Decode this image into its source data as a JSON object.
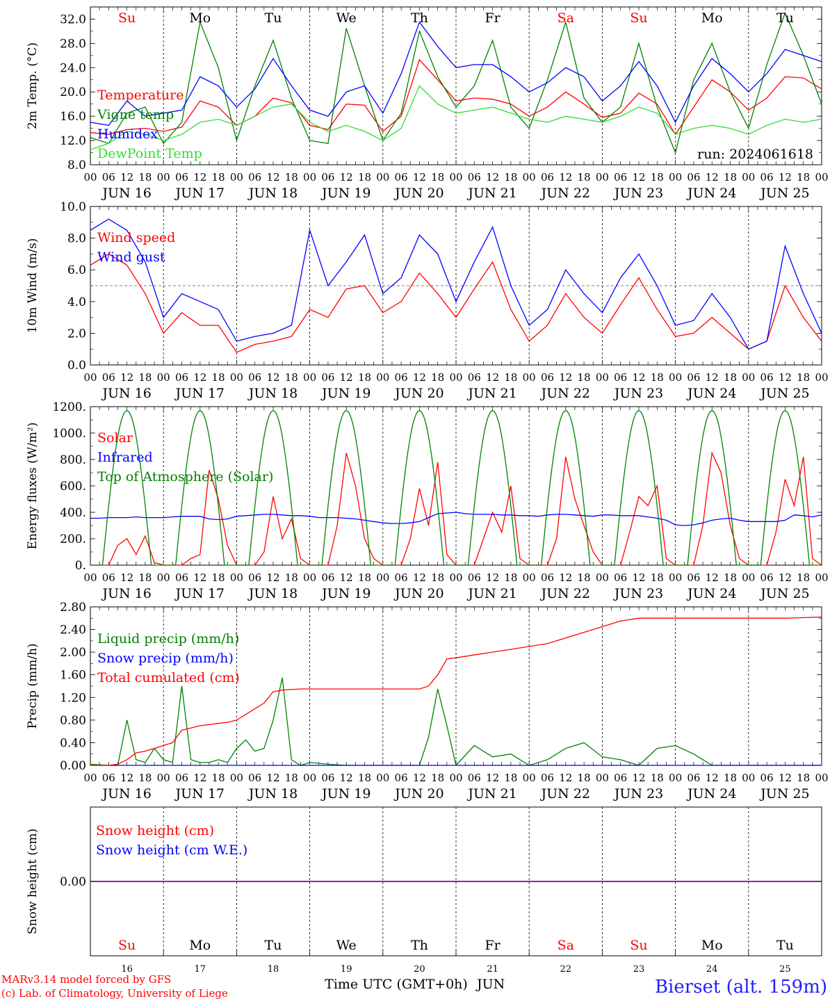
{
  "chart_data": [
    {
      "type": "line",
      "ylabel": "2m Temp. (°C)",
      "ylim": [
        8.0,
        34.0
      ],
      "yticks": [
        "8.0",
        "12.0",
        "16.0",
        "20.0",
        "24.0",
        "28.0",
        "32.0"
      ],
      "x_hours": [
        0,
        6,
        12,
        18,
        24,
        30,
        36,
        42,
        48,
        54,
        60,
        66,
        72,
        78,
        84,
        90,
        96,
        102,
        108,
        114,
        120,
        126,
        132,
        138,
        144,
        150,
        156,
        162,
        168,
        174,
        180,
        186,
        192,
        198,
        204,
        210,
        216,
        222,
        228,
        234,
        240
      ],
      "series": [
        {
          "name": "Temperature",
          "color": "#ff0000",
          "y": [
            13.3,
            13.0,
            13.8,
            14.0,
            13.5,
            14.2,
            18.5,
            17.5,
            14.5,
            16.0,
            19.0,
            18.2,
            14.5,
            13.8,
            18.0,
            17.8,
            13.5,
            16.0,
            25.3,
            22.0,
            18.5,
            19.0,
            18.8,
            18.0,
            16.0,
            17.5,
            20.0,
            18.0,
            15.8,
            16.5,
            19.8,
            18.0,
            13.0,
            17.5,
            22.0,
            20.0,
            17.0,
            19.0,
            22.5,
            22.3,
            20.5
          ]
        },
        {
          "name": "Vigne temp",
          "color": "#008000",
          "y": [
            12.5,
            11.5,
            16.5,
            17.5,
            11.5,
            15.0,
            31.5,
            24.0,
            12.0,
            21.0,
            28.5,
            19.0,
            12.0,
            11.5,
            30.5,
            21.0,
            12.0,
            16.5,
            30.0,
            22.5,
            17.5,
            21.0,
            28.5,
            17.5,
            14.0,
            22.0,
            31.5,
            19.0,
            15.0,
            17.5,
            28.0,
            17.5,
            10.0,
            22.0,
            28.0,
            20.0,
            14.0,
            24.5,
            33.0,
            26.0,
            18.0
          ]
        },
        {
          "name": "Humidex",
          "color": "#0000ff",
          "y": [
            15.0,
            14.5,
            18.5,
            16.0,
            16.5,
            17.0,
            22.5,
            21.0,
            17.5,
            20.5,
            25.5,
            21.0,
            17.0,
            16.0,
            20.0,
            21.0,
            16.5,
            23.0,
            31.5,
            27.5,
            24.0,
            24.5,
            24.5,
            22.5,
            20.0,
            21.5,
            24.0,
            22.5,
            18.5,
            21.0,
            25.0,
            21.0,
            15.0,
            21.0,
            25.5,
            23.0,
            20.0,
            23.0,
            27.0,
            26.0,
            25.0
          ]
        },
        {
          "name": "DewPoint Temp",
          "color": "#32dc32",
          "y": [
            10.5,
            11.5,
            13.5,
            13.0,
            12.0,
            13.0,
            15.0,
            15.5,
            14.5,
            16.0,
            17.5,
            18.0,
            15.0,
            13.5,
            14.5,
            13.5,
            12.0,
            14.0,
            21.0,
            18.0,
            16.5,
            17.0,
            17.5,
            16.5,
            15.5,
            15.0,
            16.0,
            15.5,
            15.0,
            16.0,
            17.5,
            16.5,
            13.0,
            14.0,
            14.5,
            14.0,
            13.0,
            14.5,
            15.5,
            15.0,
            15.5
          ]
        }
      ],
      "legend_placement": "left",
      "annotation": "run: 2024061618",
      "day_labels": [
        "Su",
        "Mo",
        "Tu",
        "We",
        "Th",
        "Fr",
        "Sa",
        "Su",
        "Mo",
        "Tu"
      ]
    },
    {
      "type": "line",
      "ylabel": "10m Wind (m/s)",
      "ylim": [
        0.0,
        10.0
      ],
      "yticks": [
        "0.0",
        "2.0",
        "4.0",
        "6.0",
        "8.0",
        "10.0"
      ],
      "reference_line": 5.0,
      "x_hours": [
        0,
        6,
        12,
        18,
        24,
        30,
        36,
        42,
        48,
        54,
        60,
        66,
        72,
        78,
        84,
        90,
        96,
        102,
        108,
        114,
        120,
        126,
        132,
        138,
        144,
        150,
        156,
        162,
        168,
        174,
        180,
        186,
        192,
        198,
        204,
        210,
        216,
        222,
        228,
        234,
        240
      ],
      "series": [
        {
          "name": "Wind speed",
          "color": "#ff0000",
          "y": [
            6.3,
            7.0,
            6.3,
            4.5,
            2.0,
            3.3,
            2.5,
            2.5,
            0.8,
            1.3,
            1.5,
            1.8,
            3.5,
            3.0,
            4.8,
            5.0,
            3.3,
            4.0,
            5.8,
            4.5,
            3.0,
            4.8,
            6.5,
            3.5,
            1.5,
            2.5,
            4.5,
            3.0,
            2.0,
            3.8,
            5.5,
            3.5,
            1.8,
            2.0,
            3.0,
            2.0,
            1.0,
            1.5,
            5.0,
            3.0,
            1.5
          ]
        },
        {
          "name": "Wind gust",
          "color": "#0000ff",
          "y": [
            8.5,
            9.2,
            8.5,
            6.5,
            3.0,
            4.5,
            4.0,
            3.5,
            1.5,
            1.8,
            2.0,
            2.5,
            8.5,
            5.0,
            6.5,
            8.2,
            4.5,
            5.5,
            8.2,
            7.0,
            4.0,
            6.5,
            8.7,
            5.0,
            2.5,
            3.5,
            6.0,
            4.5,
            3.3,
            5.5,
            7.0,
            5.0,
            2.5,
            2.8,
            4.5,
            3.0,
            1.0,
            1.5,
            7.5,
            4.5,
            2.0
          ]
        }
      ],
      "legend_placement": "left"
    },
    {
      "type": "line",
      "ylabel": "Energy fluxes (W/m²)",
      "ylim": [
        0,
        1200
      ],
      "yticks": [
        "0.",
        "200.",
        "400.",
        "600.",
        "800.",
        "1000.",
        "1200."
      ],
      "x_hours": [
        0,
        3,
        6,
        9,
        12,
        15,
        18,
        21,
        24,
        27,
        30,
        33,
        36,
        39,
        42,
        45,
        48,
        51,
        54,
        57,
        60,
        63,
        66,
        69,
        72,
        75,
        78,
        81,
        84,
        87,
        90,
        93,
        96,
        99,
        102,
        105,
        108,
        111,
        114,
        117,
        120,
        123,
        126,
        129,
        132,
        135,
        138,
        141,
        144,
        147,
        150,
        153,
        156,
        159,
        162,
        165,
        168,
        171,
        174,
        177,
        180,
        183,
        186,
        189,
        192,
        195,
        198,
        201,
        204,
        207,
        210,
        213,
        216,
        219,
        222,
        225,
        228,
        231,
        234,
        237,
        240
      ],
      "series": [
        {
          "name": "Solar",
          "color": "#ff0000",
          "y": [
            0,
            0,
            0,
            150,
            200,
            80,
            220,
            20,
            0,
            0,
            0,
            50,
            80,
            720,
            500,
            150,
            0,
            0,
            0,
            100,
            520,
            200,
            350,
            50,
            0,
            0,
            0,
            300,
            850,
            600,
            200,
            50,
            0,
            0,
            0,
            200,
            580,
            300,
            780,
            80,
            0,
            0,
            0,
            200,
            400,
            250,
            600,
            50,
            0,
            0,
            0,
            200,
            820,
            500,
            300,
            100,
            0,
            0,
            0,
            250,
            520,
            450,
            600,
            50,
            0,
            0,
            0,
            300,
            850,
            700,
            300,
            50,
            0,
            0,
            0,
            250,
            650,
            450,
            820,
            50,
            0
          ]
        },
        {
          "name": "Infrared",
          "color": "#0000ff",
          "y": [
            355,
            355,
            360,
            360,
            360,
            365,
            360,
            360,
            360,
            365,
            370,
            370,
            370,
            350,
            345,
            350,
            370,
            375,
            380,
            385,
            385,
            380,
            375,
            375,
            370,
            360,
            360,
            360,
            355,
            350,
            340,
            330,
            320,
            315,
            315,
            320,
            330,
            360,
            390,
            395,
            400,
            390,
            385,
            385,
            385,
            380,
            380,
            375,
            375,
            370,
            380,
            385,
            385,
            380,
            375,
            370,
            380,
            380,
            375,
            375,
            375,
            365,
            355,
            340,
            305,
            300,
            305,
            320,
            340,
            350,
            355,
            340,
            330,
            330,
            330,
            330,
            340,
            380,
            375,
            365,
            380
          ]
        },
        {
          "name": "Top of Atmosphere (Solar)",
          "color": "#008000",
          "shape": "diurnal",
          "peak": 1170,
          "rise_hour": 4,
          "set_hour": 20
        }
      ],
      "legend_placement": "left"
    },
    {
      "type": "line",
      "ylabel": "Precip (mm/h)",
      "ylim": [
        0.0,
        2.8
      ],
      "yticks": [
        "0.00",
        "0.40",
        "0.80",
        "1.20",
        "1.60",
        "2.00",
        "2.40",
        "2.80"
      ],
      "x_hours": [
        0,
        6,
        9,
        12,
        15,
        18,
        21,
        24,
        27,
        30,
        33,
        36,
        39,
        42,
        45,
        48,
        51,
        54,
        57,
        60,
        63,
        66,
        69,
        72,
        78,
        84,
        90,
        96,
        102,
        108,
        111,
        114,
        117,
        120,
        126,
        132,
        138,
        144,
        150,
        156,
        162,
        168,
        174,
        180,
        186,
        192,
        198,
        204,
        210,
        216,
        222,
        228,
        234,
        240
      ],
      "series": [
        {
          "name": "Liquid precip (mm/h)",
          "color": "#008000",
          "y": [
            0.02,
            0.0,
            0.0,
            0.8,
            0.1,
            0.05,
            0.3,
            0.1,
            0.05,
            1.4,
            0.1,
            0.05,
            0.05,
            0.1,
            0.05,
            0.3,
            0.45,
            0.25,
            0.3,
            0.8,
            1.55,
            0.1,
            0.0,
            0.05,
            0.02,
            0.0,
            0.0,
            0.0,
            0.0,
            0.0,
            0.5,
            1.35,
            0.7,
            0.0,
            0.35,
            0.15,
            0.2,
            0.0,
            0.1,
            0.3,
            0.4,
            0.15,
            0.1,
            0.0,
            0.3,
            0.35,
            0.2,
            0.0,
            0.0,
            0.0,
            0.0,
            0.0,
            0.0,
            0.0
          ]
        },
        {
          "name": "Snow precip (mm/h)",
          "color": "#0000ff",
          "y": [
            0,
            0,
            0,
            0,
            0,
            0,
            0,
            0,
            0,
            0,
            0,
            0,
            0,
            0,
            0,
            0,
            0,
            0,
            0,
            0,
            0,
            0,
            0,
            0,
            0,
            0,
            0,
            0,
            0,
            0,
            0,
            0,
            0,
            0,
            0,
            0,
            0,
            0,
            0,
            0,
            0,
            0,
            0,
            0,
            0,
            0,
            0,
            0,
            0,
            0,
            0,
            0,
            0,
            0
          ]
        },
        {
          "name": "Total cumulated (cm)",
          "color": "#ff0000",
          "y": [
            0.0,
            0.0,
            0.02,
            0.1,
            0.22,
            0.25,
            0.3,
            0.35,
            0.4,
            0.62,
            0.66,
            0.7,
            0.72,
            0.74,
            0.76,
            0.8,
            0.9,
            1.0,
            1.1,
            1.3,
            1.33,
            1.34,
            1.35,
            1.35,
            1.35,
            1.35,
            1.35,
            1.35,
            1.35,
            1.35,
            1.4,
            1.6,
            1.88,
            1.9,
            1.95,
            2.0,
            2.05,
            2.1,
            2.15,
            2.25,
            2.35,
            2.45,
            2.55,
            2.6,
            2.6,
            2.6,
            2.6,
            2.6,
            2.6,
            2.6,
            2.6,
            2.6,
            2.61,
            2.62
          ]
        }
      ],
      "legend_placement": "left"
    },
    {
      "type": "line",
      "ylabel": "Snow height (cm)",
      "yticks": [
        "0.00"
      ],
      "series": [
        {
          "name": "Snow height (cm)",
          "color": "#ff0000",
          "y": [
            0.0,
            0.0
          ]
        },
        {
          "name": "Snow height (cm W.E.)",
          "color": "#0000ff",
          "y": [
            0.0,
            0.0
          ]
        }
      ],
      "legend_placement": "left",
      "day_labels": [
        "Su",
        "Mo",
        "Tu",
        "We",
        "Th",
        "Fr",
        "Sa",
        "Su",
        "Mo",
        "Tu"
      ],
      "day_numbers": [
        "16",
        "17",
        "18",
        "19",
        "20",
        "21",
        "22",
        "23",
        "24",
        "25"
      ]
    }
  ],
  "shared_axis": {
    "hour_labels": [
      "00",
      "06",
      "12",
      "18"
    ],
    "end_hour_label": "00",
    "date_labels": [
      "JUN 16",
      "JUN 17",
      "JUN 18",
      "JUN 19",
      "JUN 20",
      "JUN 21",
      "JUN 22",
      "JUN 23",
      "JUN 24",
      "JUN 25"
    ],
    "weekend_color": "#ff0000",
    "weekday_color": "#000000",
    "weekend_days": [
      "Su",
      "Sa"
    ]
  },
  "footer": {
    "xlabel": "Time UTC (GMT+0h)",
    "month": "JUN",
    "credit_line1": "MARv3.14 model forced by GFS",
    "credit_line2": "(c) Lab. of Climatology, University of Liege",
    "station": "Bierset (alt. 159m)",
    "credit_color": "#ff0000",
    "station_color": "#2020ff"
  }
}
